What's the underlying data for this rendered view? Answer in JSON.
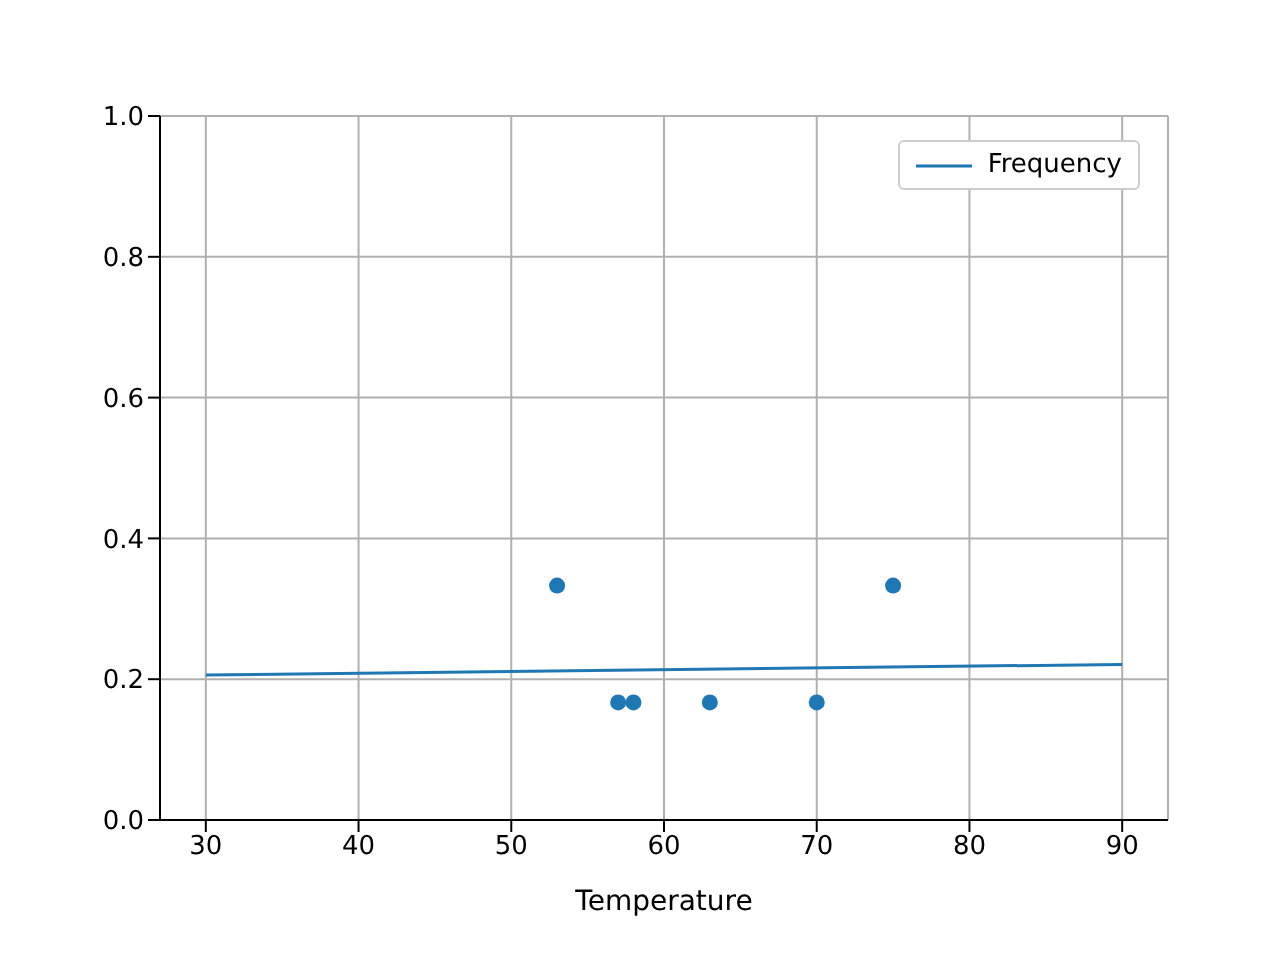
{
  "chart_data": {
    "type": "scatter",
    "xlabel": "Temperature",
    "xlim": [
      27,
      93
    ],
    "xticks": [
      30,
      40,
      50,
      60,
      70,
      80,
      90
    ],
    "ylim": [
      0,
      1
    ],
    "yticks": [
      {
        "value": 0,
        "label": "0.0"
      },
      {
        "value": 0.2,
        "label": "0.2"
      },
      {
        "value": 0.4,
        "label": "0.4"
      },
      {
        "value": 0.6,
        "label": "0.6"
      },
      {
        "value": 0.8,
        "label": "0.8"
      },
      {
        "value": 1,
        "label": "1.0"
      }
    ],
    "grid": true,
    "legend": "top right",
    "series": [
      {
        "color": "#1f77b4",
        "marker": "circle",
        "x": [
          53,
          57,
          58,
          63,
          70,
          75
        ],
        "values": [
          0.333,
          0.167,
          0.167,
          0.167,
          0.167,
          0.333
        ]
      },
      {
        "type": "line",
        "name": "Frequency",
        "color": "#1f77b4",
        "line_style": "solid",
        "x": [
          30,
          90
        ],
        "values": [
          0.206,
          0.221
        ]
      }
    ]
  }
}
